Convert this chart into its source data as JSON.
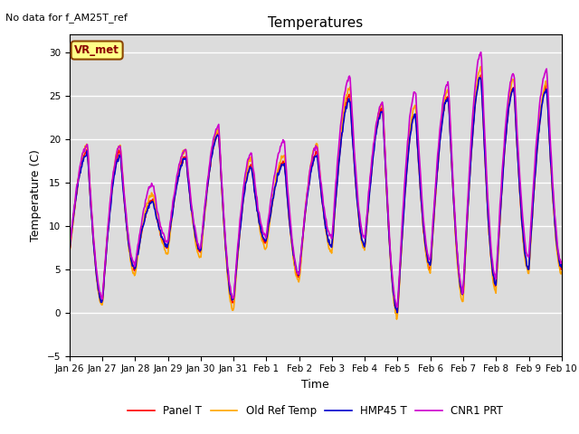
{
  "title": "Temperatures",
  "xlabel": "Time",
  "ylabel": "Temperature (C)",
  "ylim": [
    -5,
    32
  ],
  "yticks": [
    -5,
    0,
    5,
    10,
    15,
    20,
    25,
    30
  ],
  "plot_bg_color": "#dcdcdc",
  "fig_bg_color": "#ffffff",
  "grid_color": "#ffffff",
  "annotation_text": "No data for f_AM25T_ref",
  "box_label": "VR_met",
  "series": [
    "Panel T",
    "Old Ref Temp",
    "HMP45 T",
    "CNR1 PRT"
  ],
  "colors": [
    "#ff0000",
    "#ffa500",
    "#0000cc",
    "#cc00cc"
  ],
  "linewidths": [
    1.2,
    1.2,
    1.2,
    1.2
  ],
  "xtick_labels": [
    "Jan 26",
    "Jan 27",
    "Jan 28",
    "Jan 29",
    "Jan 30",
    "Jan 31",
    "Feb 1",
    "Feb 2",
    "Feb 3",
    "Feb 4",
    "Feb 5",
    "Feb 6",
    "Feb 7",
    "Feb 8",
    "Feb 9",
    "Feb 10"
  ]
}
